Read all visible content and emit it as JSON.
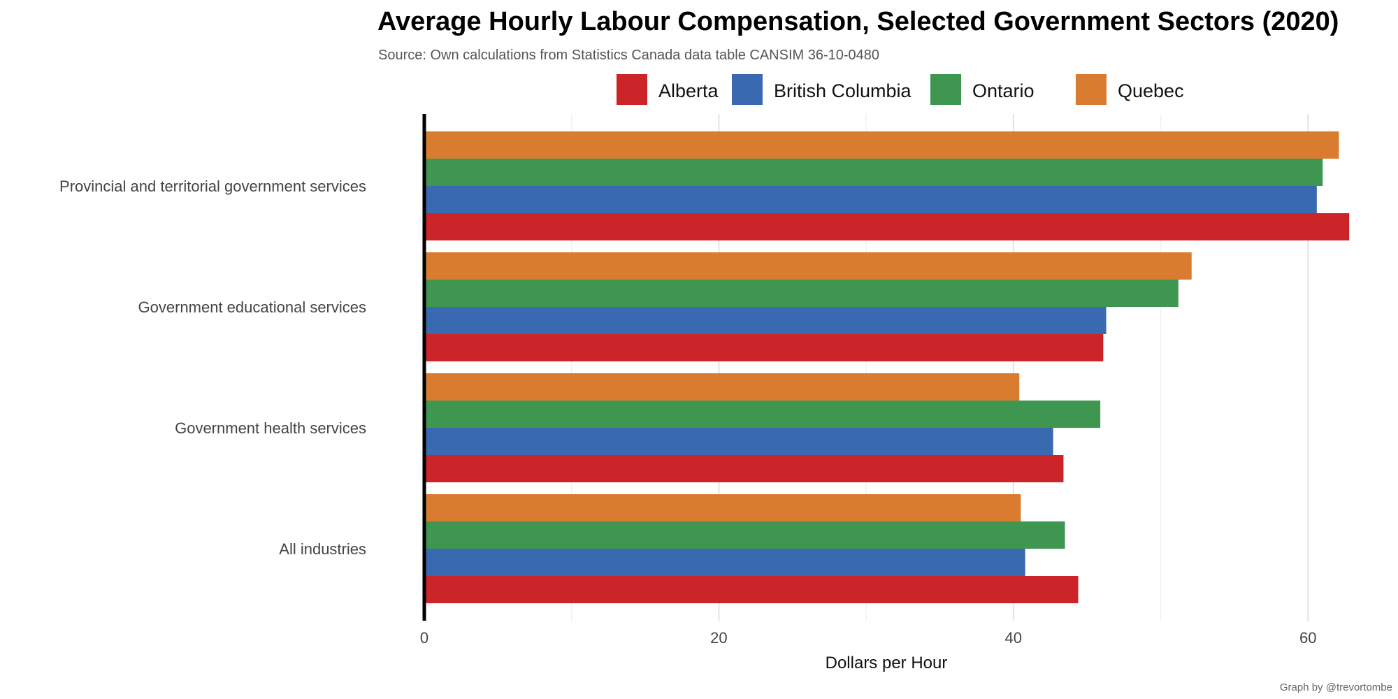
{
  "chart_data": {
    "type": "bar",
    "orientation": "horizontal",
    "title": "Average Hourly Labour Compensation, Selected Government Sectors (2020)",
    "subtitle": "Source: Own calculations from Statistics Canada data table CANSIM 36-10-0480",
    "caption": "Graph by @trevortombe",
    "xlabel": "Dollars per Hour",
    "ylabel": "",
    "xlim": [
      0,
      65
    ],
    "xticks": [
      "0",
      "20",
      "40",
      "60"
    ],
    "xtick_values": [
      0,
      20,
      40,
      60
    ],
    "grid": true,
    "legend_position": "top",
    "categories": [
      "Provincial and territorial government services",
      "Government educational services",
      "Government health services",
      "All industries"
    ],
    "series": [
      {
        "name": "Alberta",
        "color": "#cc2529",
        "values": [
          62.8,
          46.1,
          43.4,
          44.4
        ]
      },
      {
        "name": "British Columbia",
        "color": "#396ab1",
        "values": [
          60.6,
          46.3,
          42.7,
          40.8
        ]
      },
      {
        "name": "Ontario",
        "color": "#3e9651",
        "values": [
          61.0,
          51.2,
          45.9,
          43.5
        ]
      },
      {
        "name": "Quebec",
        "color": "#da7c30",
        "values": [
          62.1,
          52.1,
          40.4,
          40.5
        ]
      }
    ]
  }
}
